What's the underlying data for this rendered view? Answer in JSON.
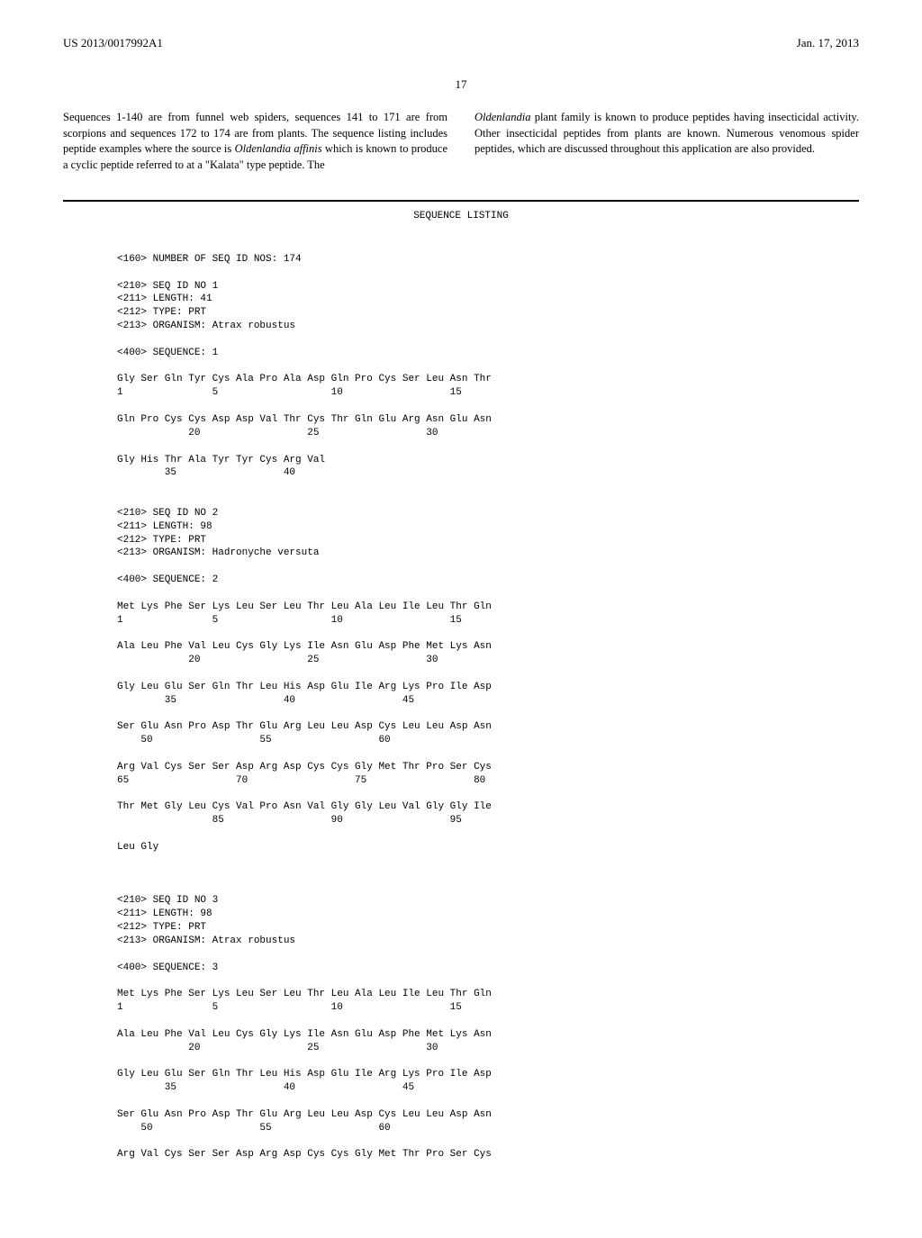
{
  "header": {
    "doc_number": "US 2013/0017992A1",
    "date": "Jan. 17, 2013"
  },
  "page_number": "17",
  "intro": {
    "left": "Sequences 1-140 are from funnel web spiders, sequences 141 to 171 are from scorpions and sequences 172 to 174 are from plants. The sequence listing includes peptide examples where the source is ",
    "left_italic": "Oldenlandia affinis",
    "left_after": " which is known to produce a cyclic peptide referred to at a \"Kalata\" type peptide. The",
    "right_italic": "Oldenlandia",
    "right": " plant family is known to produce peptides having insecticidal activity. Other insecticidal peptides from plants are known. Numerous venomous spider peptides, which are discussed throughout this application are also provided."
  },
  "seq_listing": {
    "title": "SEQUENCE LISTING",
    "num_seqs": "<160> NUMBER OF SEQ ID NOS: 174",
    "entries": [
      {
        "header": [
          "<210> SEQ ID NO 1",
          "<211> LENGTH: 41",
          "<212> TYPE: PRT",
          "<213> ORGANISM: Atrax robustus"
        ],
        "sequence_label": "<400> SEQUENCE: 1",
        "rows": [
          {
            "aa": "Gly Ser Gln Tyr Cys Ala Pro Ala Asp Gln Pro Cys Ser Leu Asn Thr",
            "nums": "1               5                   10                  15"
          },
          {
            "aa": "Gln Pro Cys Cys Asp Asp Val Thr Cys Thr Gln Glu Arg Asn Glu Asn",
            "nums": "            20                  25                  30"
          },
          {
            "aa": "Gly His Thr Ala Tyr Tyr Cys Arg Val",
            "nums": "        35                  40"
          }
        ]
      },
      {
        "header": [
          "<210> SEQ ID NO 2",
          "<211> LENGTH: 98",
          "<212> TYPE: PRT",
          "<213> ORGANISM: Hadronyche versuta"
        ],
        "sequence_label": "<400> SEQUENCE: 2",
        "rows": [
          {
            "aa": "Met Lys Phe Ser Lys Leu Ser Leu Thr Leu Ala Leu Ile Leu Thr Gln",
            "nums": "1               5                   10                  15"
          },
          {
            "aa": "Ala Leu Phe Val Leu Cys Gly Lys Ile Asn Glu Asp Phe Met Lys Asn",
            "nums": "            20                  25                  30"
          },
          {
            "aa": "Gly Leu Glu Ser Gln Thr Leu His Asp Glu Ile Arg Lys Pro Ile Asp",
            "nums": "        35                  40                  45"
          },
          {
            "aa": "Ser Glu Asn Pro Asp Thr Glu Arg Leu Leu Asp Cys Leu Leu Asp Asn",
            "nums": "    50                  55                  60"
          },
          {
            "aa": "Arg Val Cys Ser Ser Asp Arg Asp Cys Cys Gly Met Thr Pro Ser Cys",
            "nums": "65                  70                  75                  80"
          },
          {
            "aa": "Thr Met Gly Leu Cys Val Pro Asn Val Gly Gly Leu Val Gly Gly Ile",
            "nums": "                85                  90                  95"
          },
          {
            "aa": "Leu Gly",
            "nums": ""
          }
        ]
      },
      {
        "header": [
          "<210> SEQ ID NO 3",
          "<211> LENGTH: 98",
          "<212> TYPE: PRT",
          "<213> ORGANISM: Atrax robustus"
        ],
        "sequence_label": "<400> SEQUENCE: 3",
        "rows": [
          {
            "aa": "Met Lys Phe Ser Lys Leu Ser Leu Thr Leu Ala Leu Ile Leu Thr Gln",
            "nums": "1               5                   10                  15"
          },
          {
            "aa": "Ala Leu Phe Val Leu Cys Gly Lys Ile Asn Glu Asp Phe Met Lys Asn",
            "nums": "            20                  25                  30"
          },
          {
            "aa": "Gly Leu Glu Ser Gln Thr Leu His Asp Glu Ile Arg Lys Pro Ile Asp",
            "nums": "        35                  40                  45"
          },
          {
            "aa": "Ser Glu Asn Pro Asp Thr Glu Arg Leu Leu Asp Cys Leu Leu Asp Asn",
            "nums": "    50                  55                  60"
          },
          {
            "aa": "Arg Val Cys Ser Ser Asp Arg Asp Cys Cys Gly Met Thr Pro Ser Cys",
            "nums": ""
          }
        ]
      }
    ]
  }
}
